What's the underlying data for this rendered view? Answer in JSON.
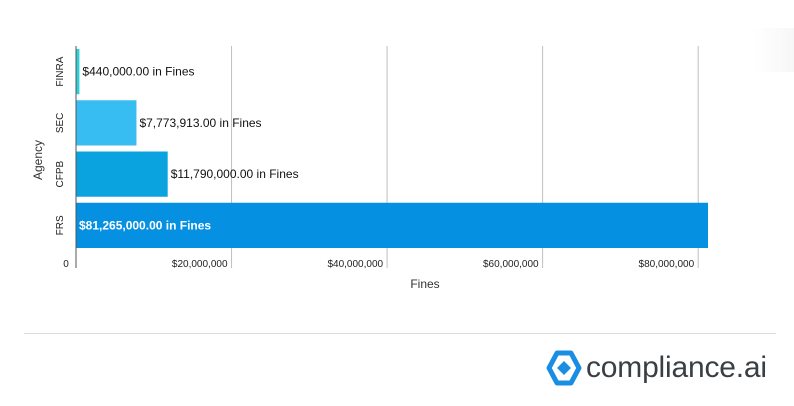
{
  "chart_data": {
    "type": "bar",
    "orientation": "horizontal",
    "categories": [
      "FINRA",
      "SEC",
      "CFPB",
      "FRS"
    ],
    "values": [
      440000,
      7773913,
      11790000,
      81265000
    ],
    "data_labels": [
      "$440,000.00 in Fines",
      "$7,773,913.00 in Fines",
      "$11,790,000.00 in Fines",
      "$81,265,000.00 in Fines"
    ],
    "bar_colors": [
      "#2ed0d8",
      "#38bdf2",
      "#0aa3e0",
      "#0690e2"
    ],
    "label_colors": [
      "#111111",
      "#111111",
      "#111111",
      "#ffffff"
    ],
    "xlabel": "Fines",
    "ylabel": "Agency",
    "xlim": [
      0,
      81265000
    ],
    "x_ticks": [
      0,
      20000000,
      40000000,
      60000000,
      80000000
    ],
    "x_tick_labels": [
      "0",
      "$20,000,000",
      "$40,000,000",
      "$60,000,000",
      "$80,000,000"
    ],
    "grid": "vertical",
    "legend": "none"
  },
  "branding": {
    "logo_text": "compliance.ai",
    "logo_color": "#1a8ee3"
  }
}
